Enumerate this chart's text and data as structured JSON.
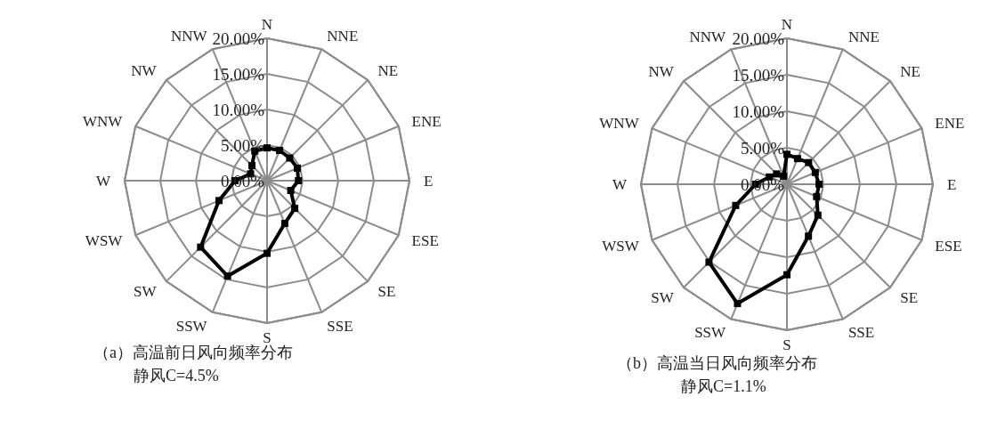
{
  "chart_data": [
    {
      "type": "radar",
      "categories": [
        "N",
        "NNE",
        "NE",
        "ENE",
        "E",
        "ESE",
        "SE",
        "SSE",
        "S",
        "SSW",
        "SW",
        "WSW",
        "W",
        "WNW",
        "NW",
        "NNW"
      ],
      "series": [
        {
          "color": "#000000",
          "values": [
            4.6,
            4.6,
            4.5,
            4.6,
            4.4,
            3.6,
            5.5,
            6.5,
            10.2,
            14.5,
            13.2,
            7.3,
            4.5,
            2.5,
            3.0,
            4.5
          ]
        }
      ],
      "ylim": [
        0,
        20
      ],
      "yticks": [
        {
          "value": 0,
          "label": "0.00%"
        },
        {
          "value": 5,
          "label": "5.00%"
        },
        {
          "value": 10,
          "label": "10.00%"
        },
        {
          "value": 15,
          "label": "15.00%"
        },
        {
          "value": 20,
          "label": "20.00%"
        }
      ],
      "grid": true,
      "marker": "square",
      "line_style": "solid",
      "annotations": [
        "（a）高温前日风向频率分布",
        "静风C=4.5%"
      ]
    },
    {
      "type": "radar",
      "categories": [
        "N",
        "NNE",
        "NE",
        "ENE",
        "E",
        "ESE",
        "SE",
        "SSE",
        "S",
        "SSW",
        "SW",
        "WSW",
        "W",
        "WNW",
        "NW",
        "NNW"
      ],
      "series": [
        {
          "color": "#000000",
          "values": [
            4.1,
            3.8,
            4.2,
            4.2,
            4.4,
            4.4,
            6.0,
            7.7,
            12.4,
            17.7,
            15.1,
            7.6,
            4.3,
            2.6,
            2.0,
            1.2
          ]
        }
      ],
      "ylim": [
        0,
        20
      ],
      "yticks": [
        {
          "value": 0,
          "label": "0.00%"
        },
        {
          "value": 5,
          "label": "5.00%"
        },
        {
          "value": 10,
          "label": "10.00%"
        },
        {
          "value": 15,
          "label": "15.00%"
        },
        {
          "value": 20,
          "label": "20.00%"
        }
      ],
      "grid": true,
      "marker": "square",
      "line_style": "solid",
      "annotations": [
        "（b）高温当日风向频率分布",
        "静风C=1.1%"
      ]
    }
  ]
}
